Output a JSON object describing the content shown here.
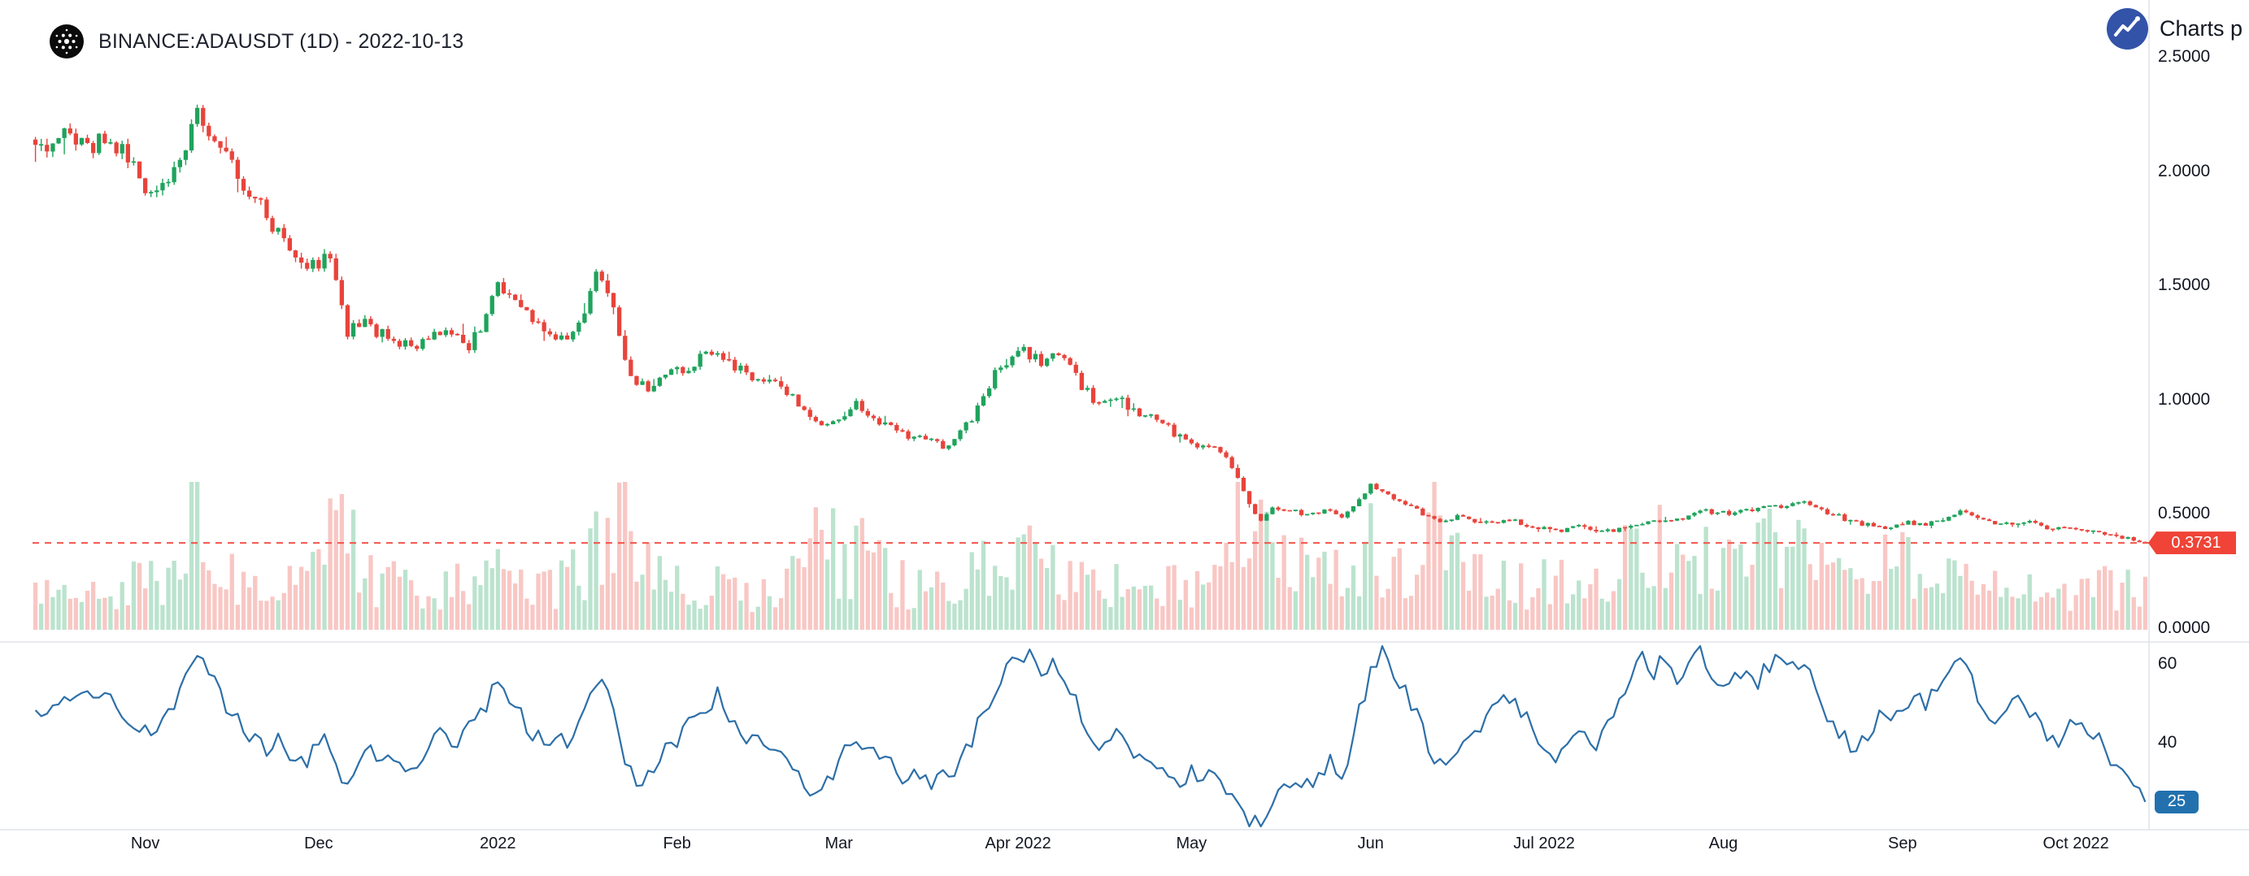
{
  "header": {
    "title": "BINANCE:ADAUSDT (1D) - 2022-10-13",
    "attribution_text": "Charts p"
  },
  "colors": {
    "background": "#ffffff",
    "text": "#131722",
    "divider": "#e0e3eb",
    "candle_up": "#1fa35c",
    "candle_down": "#e8443b",
    "volume_up": "rgba(31,163,92,0.30)",
    "volume_down": "rgba(232,68,59,0.30)",
    "last_price_line": "#f2564c",
    "last_price_badge": "#ef4437",
    "rsi_line": "#2d6fa8",
    "rsi_badge": "#2271ae",
    "logo_blue": "#3253a8",
    "logo_black": "#0b0b0b"
  },
  "chart_data": {
    "type": "candlestick+volume+rsi",
    "symbol": "BINANCE:ADAUSDT",
    "interval": "1D",
    "as_of_date": "2022-10-13",
    "days": 365,
    "seed": 20221013,
    "price_ylim": [
      0,
      2.5
    ],
    "last_price": 0.3731,
    "last_price_label": "0.3731",
    "price_axis_ticks": [
      {
        "label": "2.5000",
        "value": 2.5
      },
      {
        "label": "2.0000",
        "value": 2.0
      },
      {
        "label": "1.5000",
        "value": 1.5
      },
      {
        "label": "1.0000",
        "value": 1.0
      },
      {
        "label": "0.5000",
        "value": 0.5
      },
      {
        "label": "0.0000",
        "value": 0.0
      }
    ],
    "time_axis_ticks": [
      {
        "label": "Nov",
        "day": 19
      },
      {
        "label": "Dec",
        "day": 49
      },
      {
        "label": "2022",
        "day": 80
      },
      {
        "label": "Feb",
        "day": 111
      },
      {
        "label": "Mar",
        "day": 139
      },
      {
        "label": "Apr 2022",
        "day": 170
      },
      {
        "label": "May",
        "day": 200
      },
      {
        "label": "Jun",
        "day": 231
      },
      {
        "label": "Jul 2022",
        "day": 261
      },
      {
        "label": "Aug",
        "day": 292
      },
      {
        "label": "Sep",
        "day": 323
      },
      {
        "label": "Oct 2022",
        "day": 353
      }
    ],
    "rsi": {
      "ticks": [
        {
          "label": "60",
          "value": 60
        },
        {
          "label": "40",
          "value": 40
        }
      ],
      "last_value": 25,
      "last_label": "25"
    },
    "price_close_anchors": [
      [
        0,
        2.16
      ],
      [
        3,
        2.12
      ],
      [
        6,
        2.18
      ],
      [
        9,
        2.11
      ],
      [
        12,
        2.14
      ],
      [
        15,
        2.09
      ],
      [
        18,
        1.96
      ],
      [
        21,
        1.92
      ],
      [
        24,
        2.03
      ],
      [
        26,
        2.1
      ],
      [
        28,
        2.27
      ],
      [
        30,
        2.12
      ],
      [
        33,
        2.05
      ],
      [
        36,
        1.95
      ],
      [
        39,
        1.85
      ],
      [
        42,
        1.73
      ],
      [
        45,
        1.62
      ],
      [
        48,
        1.58
      ],
      [
        51,
        1.63
      ],
      [
        52,
        1.5
      ],
      [
        54,
        1.29
      ],
      [
        57,
        1.34
      ],
      [
        60,
        1.28
      ],
      [
        63,
        1.26
      ],
      [
        66,
        1.22
      ],
      [
        69,
        1.3
      ],
      [
        72,
        1.27
      ],
      [
        75,
        1.23
      ],
      [
        78,
        1.36
      ],
      [
        80,
        1.5
      ],
      [
        83,
        1.43
      ],
      [
        86,
        1.34
      ],
      [
        89,
        1.29
      ],
      [
        92,
        1.27
      ],
      [
        95,
        1.4
      ],
      [
        97,
        1.56
      ],
      [
        99,
        1.47
      ],
      [
        101,
        1.28
      ],
      [
        103,
        1.09
      ],
      [
        106,
        1.05
      ],
      [
        109,
        1.11
      ],
      [
        112,
        1.13
      ],
      [
        115,
        1.18
      ],
      [
        118,
        1.21
      ],
      [
        121,
        1.14
      ],
      [
        124,
        1.1
      ],
      [
        127,
        1.08
      ],
      [
        130,
        1.04
      ],
      [
        133,
        0.94
      ],
      [
        136,
        0.88
      ],
      [
        139,
        0.93
      ],
      [
        142,
        0.98
      ],
      [
        145,
        0.92
      ],
      [
        148,
        0.88
      ],
      [
        151,
        0.84
      ],
      [
        154,
        0.82
      ],
      [
        157,
        0.8
      ],
      [
        160,
        0.85
      ],
      [
        163,
        0.96
      ],
      [
        166,
        1.11
      ],
      [
        168,
        1.17
      ],
      [
        171,
        1.22
      ],
      [
        174,
        1.16
      ],
      [
        176,
        1.21
      ],
      [
        178,
        1.17
      ],
      [
        181,
        1.06
      ],
      [
        184,
        0.98
      ],
      [
        187,
        1.02
      ],
      [
        190,
        0.95
      ],
      [
        193,
        0.92
      ],
      [
        196,
        0.88
      ],
      [
        199,
        0.81
      ],
      [
        202,
        0.8
      ],
      [
        205,
        0.77
      ],
      [
        207,
        0.71
      ],
      [
        209,
        0.6
      ],
      [
        211,
        0.49
      ],
      [
        212,
        0.47
      ],
      [
        214,
        0.53
      ],
      [
        217,
        0.52
      ],
      [
        220,
        0.49
      ],
      [
        223,
        0.52
      ],
      [
        226,
        0.49
      ],
      [
        229,
        0.56
      ],
      [
        231,
        0.63
      ],
      [
        234,
        0.58
      ],
      [
        237,
        0.54
      ],
      [
        240,
        0.5
      ],
      [
        243,
        0.46
      ],
      [
        246,
        0.49
      ],
      [
        249,
        0.47
      ],
      [
        252,
        0.46
      ],
      [
        255,
        0.48
      ],
      [
        258,
        0.45
      ],
      [
        261,
        0.44
      ],
      [
        264,
        0.43
      ],
      [
        267,
        0.45
      ],
      [
        270,
        0.42
      ],
      [
        273,
        0.43
      ],
      [
        276,
        0.45
      ],
      [
        279,
        0.46
      ],
      [
        282,
        0.48
      ],
      [
        285,
        0.47
      ],
      [
        288,
        0.51
      ],
      [
        291,
        0.51
      ],
      [
        294,
        0.5
      ],
      [
        297,
        0.52
      ],
      [
        300,
        0.53
      ],
      [
        303,
        0.54
      ],
      [
        306,
        0.55
      ],
      [
        309,
        0.52
      ],
      [
        312,
        0.49
      ],
      [
        315,
        0.46
      ],
      [
        318,
        0.45
      ],
      [
        321,
        0.44
      ],
      [
        324,
        0.46
      ],
      [
        327,
        0.45
      ],
      [
        330,
        0.48
      ],
      [
        333,
        0.51
      ],
      [
        336,
        0.48
      ],
      [
        339,
        0.46
      ],
      [
        342,
        0.45
      ],
      [
        345,
        0.46
      ],
      [
        348,
        0.44
      ],
      [
        351,
        0.43
      ],
      [
        354,
        0.43
      ],
      [
        357,
        0.42
      ],
      [
        360,
        0.4
      ],
      [
        362,
        0.39
      ],
      [
        365,
        0.3731
      ]
    ],
    "volume_anchors": [
      [
        0,
        0.3
      ],
      [
        6,
        0.24
      ],
      [
        12,
        0.28
      ],
      [
        18,
        0.34
      ],
      [
        22,
        0.28
      ],
      [
        26,
        0.45
      ],
      [
        28,
        0.85
      ],
      [
        31,
        0.4
      ],
      [
        35,
        0.3
      ],
      [
        40,
        0.32
      ],
      [
        45,
        0.42
      ],
      [
        50,
        0.35
      ],
      [
        52,
        0.9
      ],
      [
        54,
        0.6
      ],
      [
        58,
        0.35
      ],
      [
        62,
        0.3
      ],
      [
        66,
        0.26
      ],
      [
        70,
        0.28
      ],
      [
        75,
        0.32
      ],
      [
        78,
        0.42
      ],
      [
        82,
        0.3
      ],
      [
        86,
        0.26
      ],
      [
        90,
        0.28
      ],
      [
        95,
        0.4
      ],
      [
        97,
        0.6
      ],
      [
        101,
        0.8
      ],
      [
        104,
        0.5
      ],
      [
        108,
        0.34
      ],
      [
        112,
        0.3
      ],
      [
        116,
        0.28
      ],
      [
        120,
        0.26
      ],
      [
        124,
        0.24
      ],
      [
        128,
        0.26
      ],
      [
        132,
        0.45
      ],
      [
        136,
        0.65
      ],
      [
        140,
        0.4
      ],
      [
        144,
        0.55
      ],
      [
        148,
        0.32
      ],
      [
        152,
        0.28
      ],
      [
        156,
        0.26
      ],
      [
        160,
        0.32
      ],
      [
        164,
        0.4
      ],
      [
        168,
        0.52
      ],
      [
        172,
        0.45
      ],
      [
        176,
        0.4
      ],
      [
        180,
        0.35
      ],
      [
        184,
        0.3
      ],
      [
        188,
        0.28
      ],
      [
        192,
        0.26
      ],
      [
        196,
        0.3
      ],
      [
        200,
        0.32
      ],
      [
        204,
        0.38
      ],
      [
        207,
        0.55
      ],
      [
        209,
        0.75
      ],
      [
        211,
        0.95
      ],
      [
        213,
        0.8
      ],
      [
        216,
        0.5
      ],
      [
        220,
        0.38
      ],
      [
        224,
        0.34
      ],
      [
        228,
        0.4
      ],
      [
        231,
        0.55
      ],
      [
        234,
        0.45
      ],
      [
        238,
        0.38
      ],
      [
        241,
        0.5
      ],
      [
        243,
        0.85
      ],
      [
        245,
        0.6
      ],
      [
        248,
        0.4
      ],
      [
        252,
        0.32
      ],
      [
        256,
        0.28
      ],
      [
        260,
        0.3
      ],
      [
        264,
        0.36
      ],
      [
        268,
        0.32
      ],
      [
        272,
        0.36
      ],
      [
        276,
        0.52
      ],
      [
        280,
        0.58
      ],
      [
        284,
        0.45
      ],
      [
        288,
        0.52
      ],
      [
        292,
        0.4
      ],
      [
        296,
        0.38
      ],
      [
        300,
        0.55
      ],
      [
        303,
        0.62
      ],
      [
        306,
        0.58
      ],
      [
        310,
        0.45
      ],
      [
        314,
        0.4
      ],
      [
        318,
        0.42
      ],
      [
        322,
        0.48
      ],
      [
        326,
        0.42
      ],
      [
        330,
        0.4
      ],
      [
        333,
        0.46
      ],
      [
        337,
        0.36
      ],
      [
        341,
        0.3
      ],
      [
        345,
        0.34
      ],
      [
        349,
        0.3
      ],
      [
        353,
        0.28
      ],
      [
        357,
        0.3
      ],
      [
        361,
        0.26
      ],
      [
        365,
        0.24
      ]
    ],
    "rsi_anchors": [
      [
        0,
        50
      ],
      [
        3,
        47
      ],
      [
        5,
        52
      ],
      [
        8,
        55
      ],
      [
        10,
        52
      ],
      [
        12,
        55
      ],
      [
        14,
        49
      ],
      [
        16,
        45
      ],
      [
        18,
        43
      ],
      [
        20,
        41
      ],
      [
        22,
        45
      ],
      [
        24,
        50
      ],
      [
        26,
        55
      ],
      [
        28,
        62
      ],
      [
        30,
        58
      ],
      [
        32,
        52
      ],
      [
        34,
        48
      ],
      [
        36,
        44
      ],
      [
        38,
        41
      ],
      [
        40,
        38
      ],
      [
        42,
        41
      ],
      [
        44,
        38
      ],
      [
        46,
        35
      ],
      [
        48,
        37
      ],
      [
        50,
        41
      ],
      [
        52,
        34
      ],
      [
        54,
        30
      ],
      [
        56,
        35
      ],
      [
        58,
        38
      ],
      [
        60,
        34
      ],
      [
        62,
        36
      ],
      [
        64,
        32
      ],
      [
        66,
        34
      ],
      [
        68,
        39
      ],
      [
        70,
        42
      ],
      [
        72,
        38
      ],
      [
        74,
        41
      ],
      [
        76,
        46
      ],
      [
        78,
        50
      ],
      [
        80,
        55
      ],
      [
        82,
        51
      ],
      [
        84,
        47
      ],
      [
        86,
        43
      ],
      [
        88,
        40
      ],
      [
        90,
        43
      ],
      [
        92,
        41
      ],
      [
        94,
        46
      ],
      [
        96,
        55
      ],
      [
        98,
        57
      ],
      [
        100,
        48
      ],
      [
        102,
        34
      ],
      [
        104,
        29
      ],
      [
        106,
        32
      ],
      [
        108,
        36
      ],
      [
        110,
        39
      ],
      [
        112,
        42
      ],
      [
        114,
        46
      ],
      [
        116,
        49
      ],
      [
        118,
        52
      ],
      [
        120,
        47
      ],
      [
        122,
        43
      ],
      [
        124,
        41
      ],
      [
        126,
        39
      ],
      [
        128,
        38
      ],
      [
        130,
        36
      ],
      [
        132,
        31
      ],
      [
        134,
        28
      ],
      [
        136,
        27
      ],
      [
        138,
        32
      ],
      [
        140,
        38
      ],
      [
        142,
        42
      ],
      [
        144,
        39
      ],
      [
        146,
        36
      ],
      [
        148,
        34
      ],
      [
        150,
        32
      ],
      [
        152,
        31
      ],
      [
        154,
        30
      ],
      [
        156,
        30
      ],
      [
        158,
        32
      ],
      [
        160,
        36
      ],
      [
        162,
        41
      ],
      [
        164,
        47
      ],
      [
        166,
        54
      ],
      [
        168,
        58
      ],
      [
        170,
        61
      ],
      [
        172,
        64
      ],
      [
        174,
        58
      ],
      [
        176,
        62
      ],
      [
        178,
        57
      ],
      [
        180,
        50
      ],
      [
        182,
        44
      ],
      [
        184,
        40
      ],
      [
        186,
        43
      ],
      [
        188,
        41
      ],
      [
        190,
        38
      ],
      [
        192,
        37
      ],
      [
        194,
        35
      ],
      [
        196,
        33
      ],
      [
        198,
        31
      ],
      [
        200,
        32
      ],
      [
        202,
        33
      ],
      [
        204,
        30
      ],
      [
        206,
        28
      ],
      [
        208,
        24
      ],
      [
        210,
        19
      ],
      [
        212,
        20
      ],
      [
        214,
        26
      ],
      [
        216,
        30
      ],
      [
        218,
        32
      ],
      [
        220,
        29
      ],
      [
        222,
        32
      ],
      [
        224,
        35
      ],
      [
        226,
        32
      ],
      [
        228,
        40
      ],
      [
        229,
        48
      ],
      [
        231,
        58
      ],
      [
        233,
        64
      ],
      [
        236,
        56
      ],
      [
        239,
        48
      ],
      [
        241,
        40
      ],
      [
        243,
        34
      ],
      [
        246,
        40
      ],
      [
        249,
        44
      ],
      [
        252,
        47
      ],
      [
        255,
        52
      ],
      [
        257,
        48
      ],
      [
        259,
        44
      ],
      [
        261,
        40
      ],
      [
        263,
        36
      ],
      [
        265,
        40
      ],
      [
        267,
        45
      ],
      [
        270,
        40
      ],
      [
        272,
        46
      ],
      [
        274,
        52
      ],
      [
        276,
        57
      ],
      [
        278,
        62
      ],
      [
        280,
        58
      ],
      [
        282,
        62
      ],
      [
        284,
        56
      ],
      [
        286,
        60
      ],
      [
        288,
        64
      ],
      [
        290,
        58
      ],
      [
        292,
        52
      ],
      [
        294,
        56
      ],
      [
        296,
        60
      ],
      [
        298,
        56
      ],
      [
        300,
        60
      ],
      [
        302,
        63
      ],
      [
        304,
        58
      ],
      [
        306,
        62
      ],
      [
        308,
        54
      ],
      [
        310,
        47
      ],
      [
        312,
        42
      ],
      [
        315,
        38
      ],
      [
        317,
        43
      ],
      [
        319,
        47
      ],
      [
        321,
        44
      ],
      [
        323,
        49
      ],
      [
        325,
        53
      ],
      [
        327,
        48
      ],
      [
        329,
        54
      ],
      [
        331,
        58
      ],
      [
        333,
        62
      ],
      [
        335,
        55
      ],
      [
        337,
        49
      ],
      [
        339,
        45
      ],
      [
        341,
        48
      ],
      [
        343,
        52
      ],
      [
        345,
        48
      ],
      [
        347,
        44
      ],
      [
        349,
        40
      ],
      [
        351,
        42
      ],
      [
        353,
        45
      ],
      [
        355,
        42
      ],
      [
        357,
        40
      ],
      [
        359,
        36
      ],
      [
        361,
        31
      ],
      [
        363,
        28
      ],
      [
        365,
        25
      ]
    ]
  }
}
